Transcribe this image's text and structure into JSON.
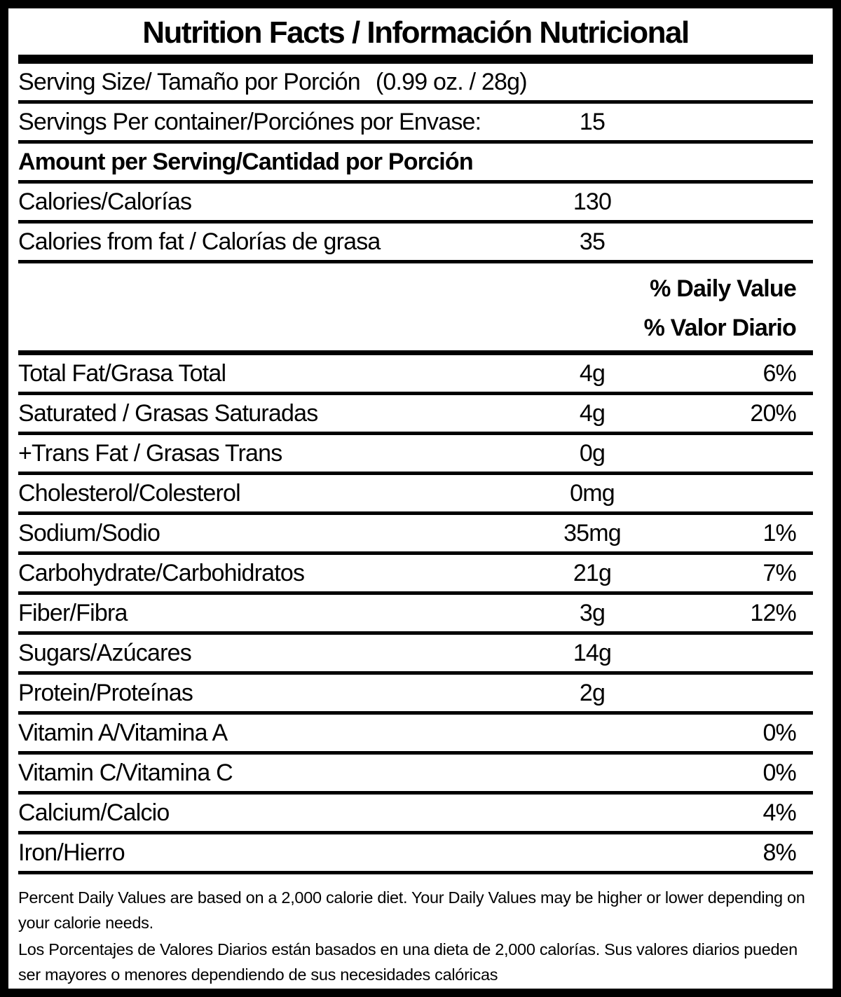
{
  "title": "Nutrition Facts / Información Nutricional",
  "serving_size": {
    "label": "Serving Size/ Tamaño por Porción",
    "value": "(0.99 oz. / 28g)"
  },
  "servings_per_container": {
    "label": "Servings Per container/Porciónes por Envase:",
    "value": "15"
  },
  "amount_per_serving_header": "Amount per Serving/Cantidad por Porción",
  "calorie_rows": [
    {
      "label": "Calories/Calorías",
      "amount": "130",
      "percent": ""
    },
    {
      "label": "Calories from fat / Calorías de grasa",
      "amount": "35",
      "percent": ""
    }
  ],
  "daily_value_header": {
    "line1": "% Daily Value",
    "line2": "% Valor Diario"
  },
  "nutrient_rows": [
    {
      "label": "Total Fat/Grasa Total",
      "amount": "4g",
      "percent": "6%"
    },
    {
      "label": "Saturated / Grasas Saturadas",
      "amount": "4g",
      "percent": "20%"
    },
    {
      "label": "+Trans Fat / Grasas Trans",
      "amount": "0g",
      "percent": ""
    },
    {
      "label": "Cholesterol/Colesterol",
      "amount": "0mg",
      "percent": ""
    },
    {
      "label": "Sodium/Sodio",
      "amount": "35mg",
      "percent": "1%"
    },
    {
      "label": "Carbohydrate/Carbohidratos",
      "amount": "21g",
      "percent": "7%"
    },
    {
      "label": "Fiber/Fibra",
      "amount": "3g",
      "percent": "12%"
    },
    {
      "label": "Sugars/Azúcares",
      "amount": "14g",
      "percent": ""
    },
    {
      "label": "Protein/Proteínas",
      "amount": "2g",
      "percent": ""
    },
    {
      "label": "Vitamin A/Vitamina A",
      "amount": "",
      "percent": "0%"
    },
    {
      "label": "Vitamin C/Vitamina C",
      "amount": "",
      "percent": "0%"
    },
    {
      "label": "Calcium/Calcio",
      "amount": "",
      "percent": "4%"
    },
    {
      "label": "Iron/Hierro",
      "amount": "",
      "percent": "8%"
    }
  ],
  "footnotes": {
    "english": "Percent Daily Values are based on a 2,000 calorie diet. Your Daily Values may be higher or lower depending on your calorie needs.",
    "spanish": "Los Porcentajes de Valores Diarios están basados en una dieta de 2,000 calorías. Sus valores diarios pueden ser mayores o menores dependiendo de sus necesidades calóricas"
  },
  "colors": {
    "text": "#000000",
    "background": "#ffffff"
  }
}
